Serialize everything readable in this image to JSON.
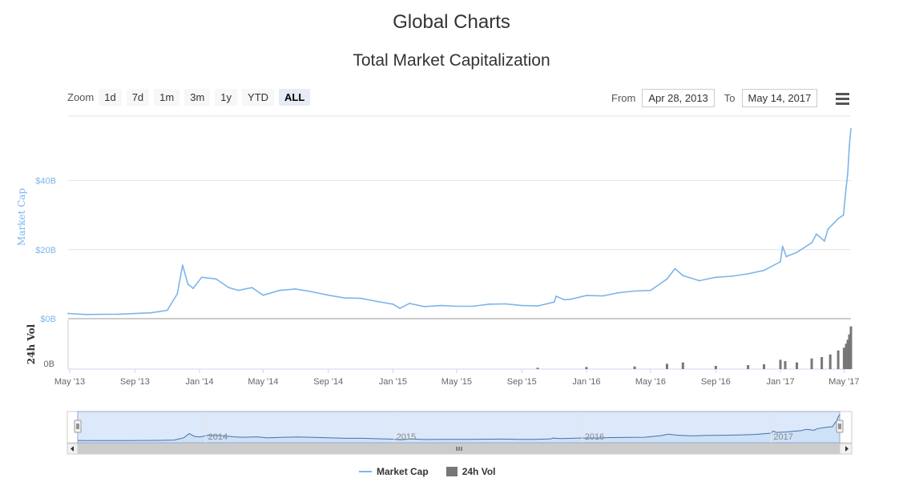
{
  "page_title": "Global Charts",
  "toolbar": {
    "zoom_label": "Zoom",
    "zoom_buttons": [
      "1d",
      "7d",
      "1m",
      "3m",
      "1y",
      "YTD",
      "ALL"
    ],
    "active_zoom": "ALL",
    "from_label": "From",
    "from_value": "Apr 28, 2013",
    "to_label": "To",
    "to_value": "May 14, 2017"
  },
  "colors": {
    "market_cap": "#7cb5ec",
    "volume": "#777777",
    "navigator_fill": "#dce9fa"
  },
  "chart_data": {
    "type": "line",
    "title": "Total Market Capitalization",
    "ylabel": "Market Cap",
    "ylabel2": "24h Vol",
    "y_tick_labels": [
      "$0B",
      "$20B",
      "$40B"
    ],
    "y_ticks": [
      0,
      20,
      40
    ],
    "ylim": [
      0,
      58
    ],
    "vol_tick_label": "0B",
    "x_tick_labels": [
      "May '13",
      "Sep '13",
      "Jan '14",
      "May '14",
      "Sep '14",
      "Jan '15",
      "May '15",
      "Sep '15",
      "Jan '16",
      "May '16",
      "Sep '16",
      "Jan '17",
      "May '17"
    ],
    "navigator_labels": [
      "2014",
      "2015",
      "2016",
      "2017"
    ],
    "legend_position": "bottom-center",
    "series": [
      {
        "name": "Market Cap",
        "x": [
          "2013-04-28",
          "2013-06-01",
          "2013-08-01",
          "2013-10-01",
          "2013-11-01",
          "2013-11-20",
          "2013-11-30",
          "2013-12-10",
          "2013-12-20",
          "2014-01-05",
          "2014-02-01",
          "2014-02-25",
          "2014-03-15",
          "2014-04-10",
          "2014-05-01",
          "2014-06-01",
          "2014-07-01",
          "2014-08-01",
          "2014-09-01",
          "2014-10-01",
          "2014-11-01",
          "2014-12-01",
          "2015-01-01",
          "2015-01-14",
          "2015-02-01",
          "2015-03-01",
          "2015-04-01",
          "2015-05-01",
          "2015-06-01",
          "2015-07-01",
          "2015-08-01",
          "2015-09-01",
          "2015-10-01",
          "2015-11-01",
          "2015-11-05",
          "2015-11-20",
          "2015-12-01",
          "2016-01-01",
          "2016-02-01",
          "2016-03-01",
          "2016-04-01",
          "2016-05-01",
          "2016-06-01",
          "2016-06-16",
          "2016-07-01",
          "2016-08-01",
          "2016-09-01",
          "2016-10-01",
          "2016-11-01",
          "2016-12-01",
          "2017-01-01",
          "2017-01-05",
          "2017-01-12",
          "2017-02-01",
          "2017-03-01",
          "2017-03-10",
          "2017-03-25",
          "2017-04-01",
          "2017-04-20",
          "2017-04-30",
          "2017-05-05",
          "2017-05-08",
          "2017-05-11",
          "2017-05-14"
        ],
        "y": [
          1.5,
          1.2,
          1.3,
          1.7,
          2.4,
          7.2,
          15.5,
          10,
          8.8,
          12,
          11.5,
          9,
          8.2,
          9,
          6.8,
          8.2,
          8.6,
          7.8,
          6.8,
          6,
          5.9,
          5,
          4.2,
          3,
          4.4,
          3.5,
          3.8,
          3.6,
          3.6,
          4.2,
          4.3,
          3.8,
          3.7,
          4.8,
          6.5,
          5.5,
          5.6,
          6.7,
          6.6,
          7.5,
          8,
          8.2,
          11.5,
          14.5,
          12.5,
          11,
          12,
          12.3,
          13,
          14,
          16.5,
          21,
          18,
          19.2,
          22,
          24.5,
          22.5,
          26,
          29,
          30,
          38,
          42,
          50,
          55
        ],
        "values": [
          1.5,
          1.2,
          1.3,
          1.7,
          2.4,
          7.2,
          15.5,
          10,
          8.8,
          12,
          11.5,
          9,
          8.2,
          9,
          6.8,
          8.2,
          8.6,
          7.8,
          6.8,
          6,
          5.9,
          5,
          4.2,
          3,
          4.4,
          3.5,
          3.8,
          3.6,
          3.6,
          4.2,
          4.3,
          3.8,
          3.7,
          4.8,
          6.5,
          5.5,
          5.6,
          6.7,
          6.6,
          7.5,
          8,
          8.2,
          11.5,
          14.5,
          12.5,
          11,
          12,
          12.3,
          13,
          14,
          16.5,
          21,
          18,
          19.2,
          22,
          24.5,
          22.5,
          26,
          29,
          30,
          38,
          42,
          50,
          55
        ]
      },
      {
        "name": "24h Vol",
        "type": "bar",
        "x": [
          "2015-10-01",
          "2016-01-01",
          "2016-04-01",
          "2016-06-01",
          "2016-07-01",
          "2016-09-01",
          "2016-11-01",
          "2016-12-01",
          "2017-01-01",
          "2017-01-10",
          "2017-02-01",
          "2017-03-01",
          "2017-03-20",
          "2017-04-05",
          "2017-04-20",
          "2017-05-01",
          "2017-05-05",
          "2017-05-08",
          "2017-05-11",
          "2017-05-14"
        ],
        "y": [
          0.05,
          0.08,
          0.1,
          0.2,
          0.25,
          0.12,
          0.15,
          0.18,
          0.35,
          0.3,
          0.25,
          0.4,
          0.45,
          0.55,
          0.7,
          0.8,
          0.95,
          1.1,
          1.3,
          1.6
        ],
        "values": [
          0.05,
          0.08,
          0.1,
          0.2,
          0.25,
          0.12,
          0.15,
          0.18,
          0.35,
          0.3,
          0.25,
          0.4,
          0.45,
          0.55,
          0.7,
          0.8,
          0.95,
          1.1,
          1.3,
          1.6
        ]
      }
    ],
    "vol_ylim": [
      0,
      1.8
    ]
  }
}
